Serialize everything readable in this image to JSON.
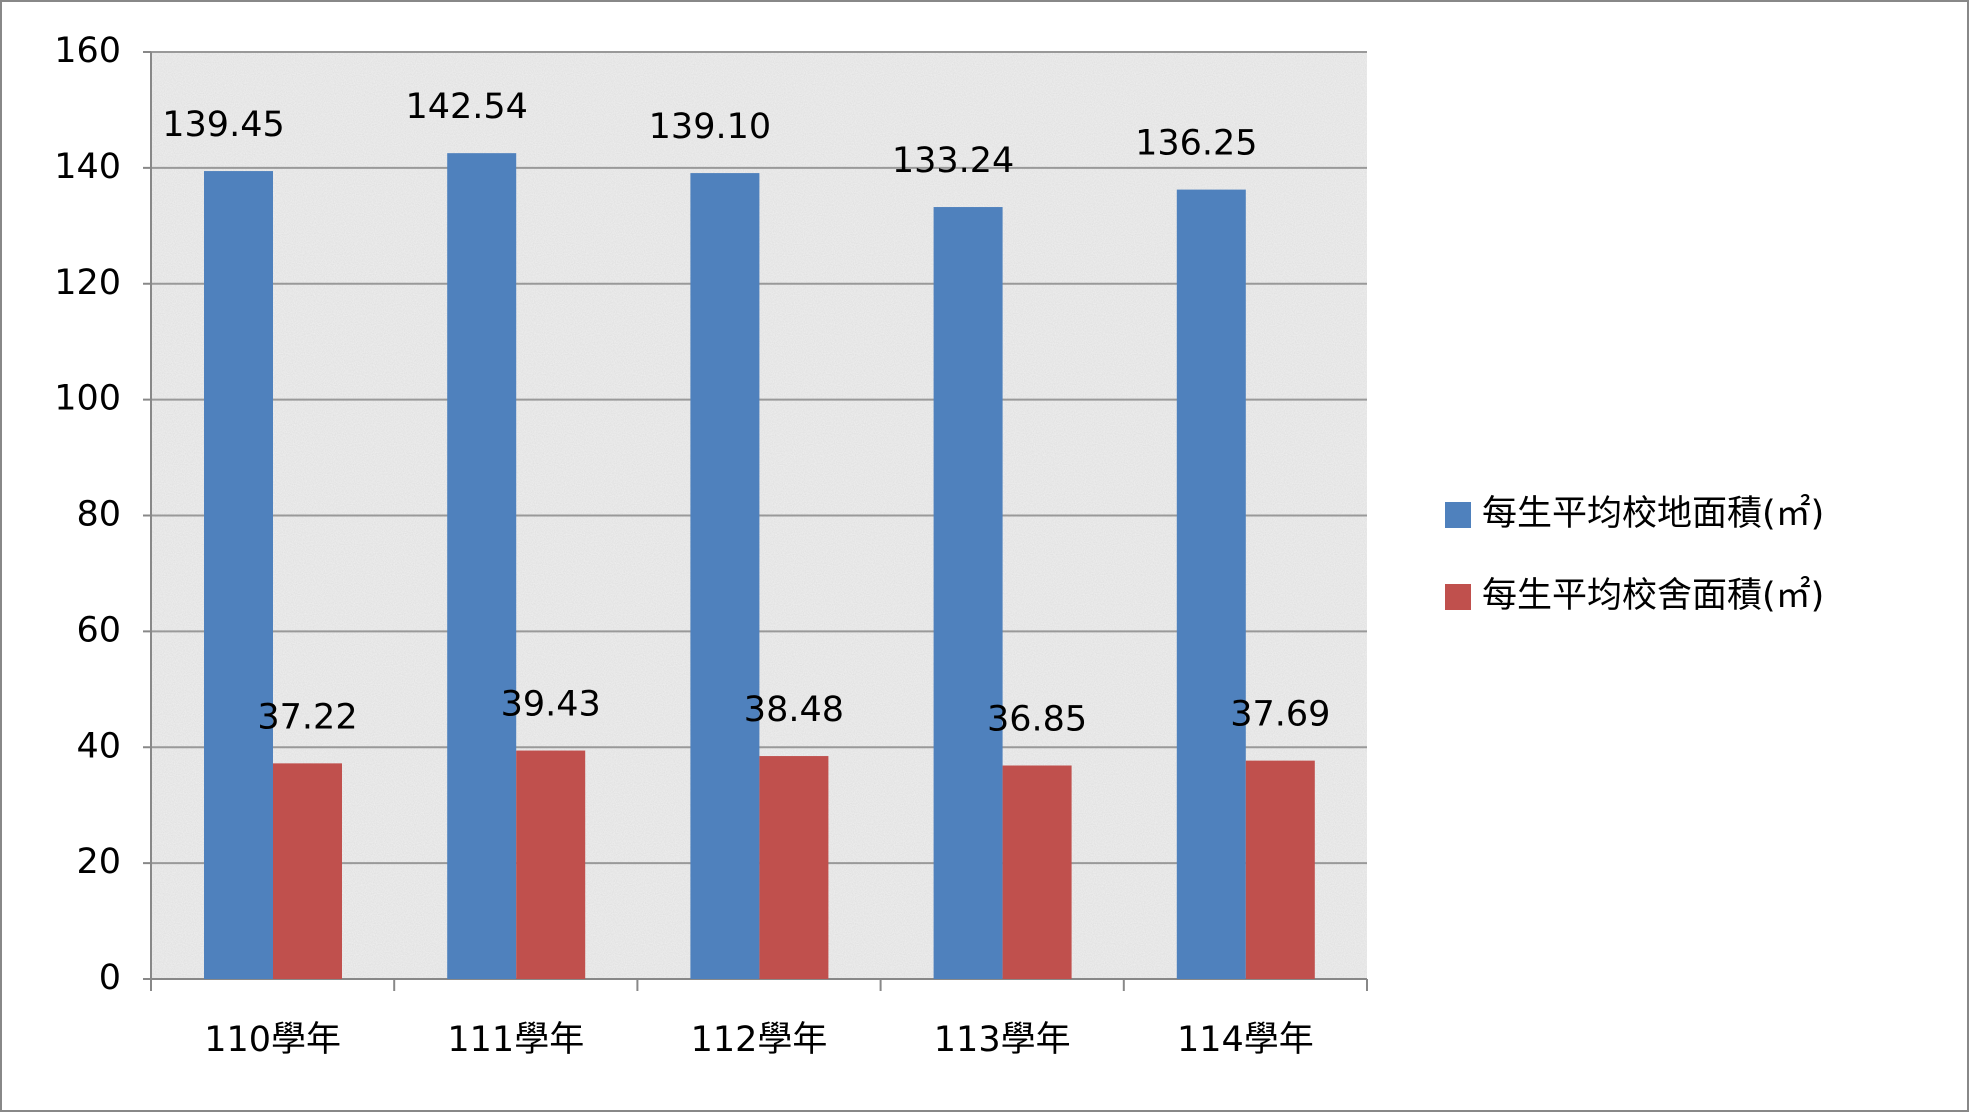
{
  "chart_data": {
    "type": "bar",
    "categories": [
      "110學年",
      "111學年",
      "112學年",
      "113學年",
      "114學年"
    ],
    "series": [
      {
        "name": "每生平均校地面積(㎡)",
        "color": "#4f81bd",
        "values": [
          139.45,
          142.54,
          139.1,
          133.24,
          136.25
        ],
        "value_labels": [
          "139.45",
          "142.54",
          "139.10",
          "133.24",
          "136.25"
        ]
      },
      {
        "name": "每生平均校舍面積(㎡)",
        "color": "#c0504d",
        "values": [
          37.22,
          39.43,
          38.48,
          36.85,
          37.69
        ],
        "value_labels": [
          "37.22",
          "39.43",
          "38.48",
          "36.85",
          "37.69"
        ]
      }
    ],
    "ylim": [
      0,
      160
    ],
    "yticks": [
      0,
      20,
      40,
      60,
      80,
      100,
      120,
      140,
      160
    ],
    "grid": true,
    "legend": "right"
  }
}
